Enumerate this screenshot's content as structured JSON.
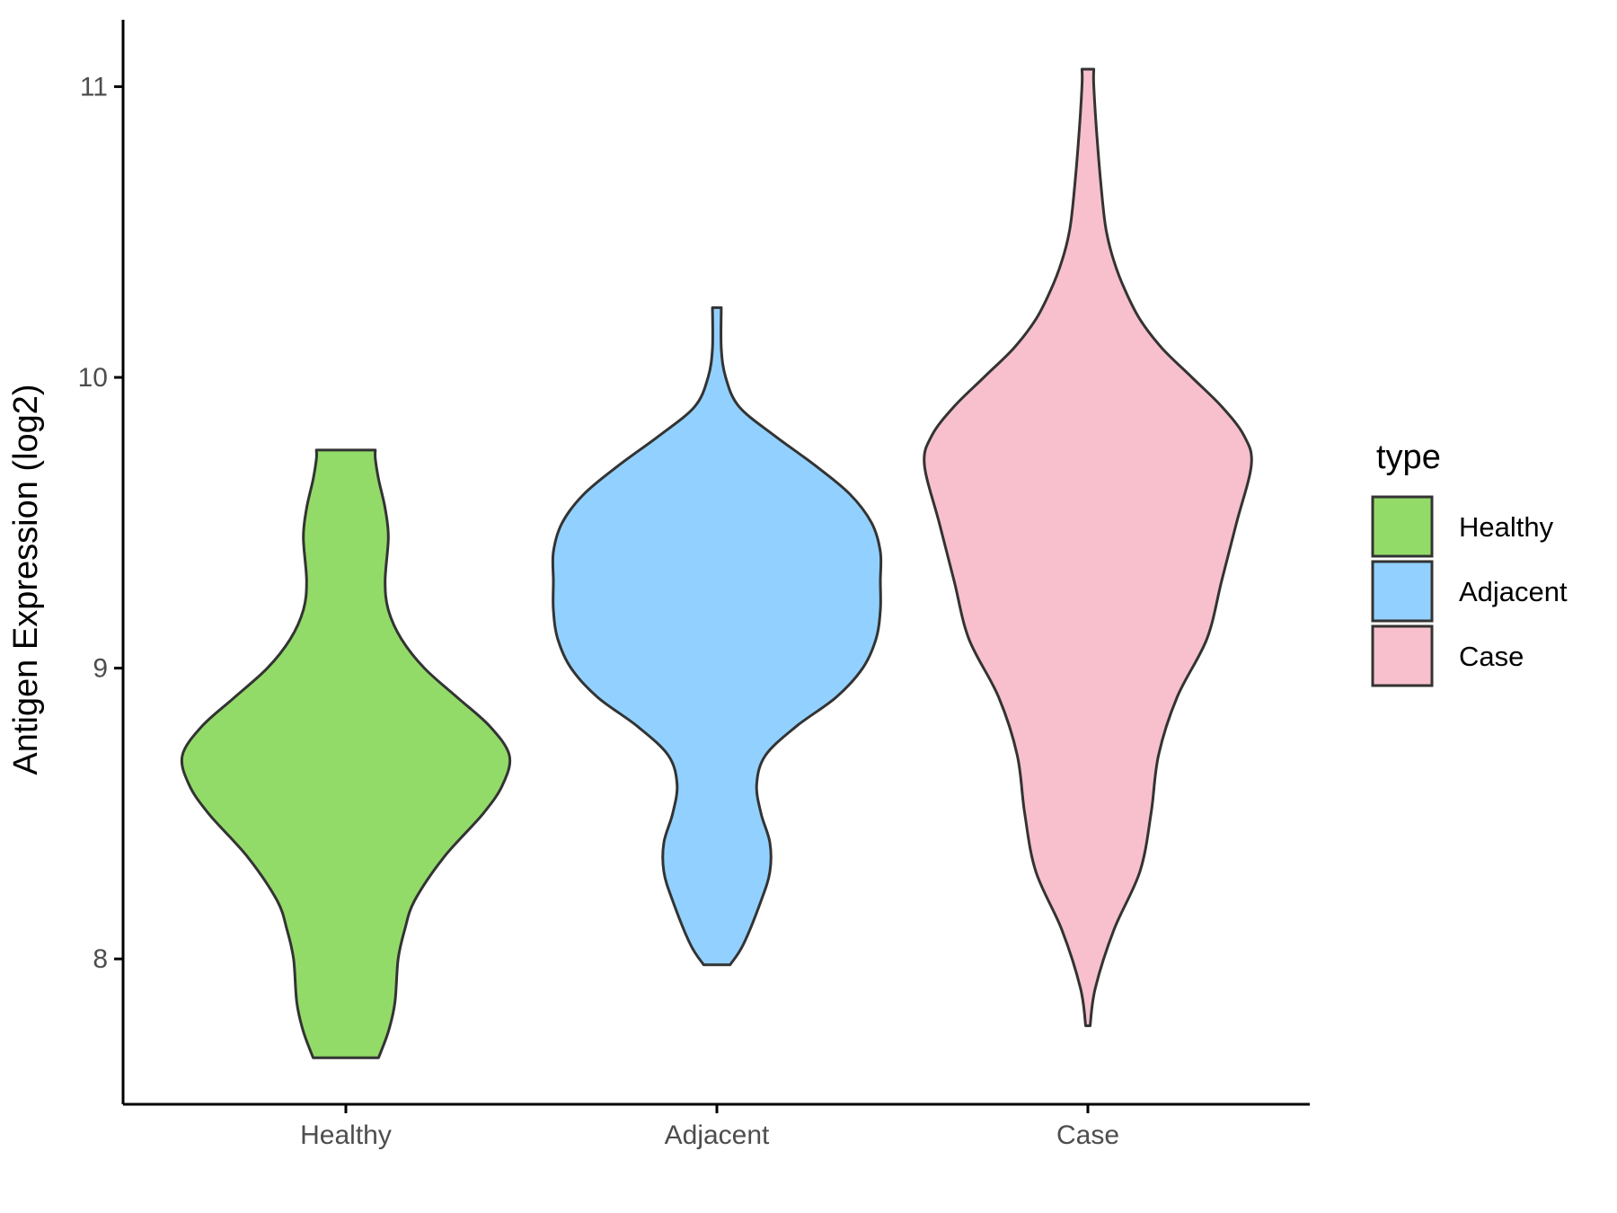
{
  "chart_data": {
    "type": "violin",
    "title": "",
    "xlabel": "",
    "ylabel": "Antigen Expression (log2)",
    "ylim": [
      7.5,
      11.23
    ],
    "yticks": [
      8,
      9,
      10,
      11
    ],
    "categories": [
      "Healthy",
      "Adjacent",
      "Case"
    ],
    "grid": false,
    "legend": {
      "title": "type",
      "position": "right",
      "entries": [
        "Healthy",
        "Adjacent",
        "Case"
      ]
    },
    "series": [
      {
        "name": "Healthy",
        "color": "#93DB69",
        "min": 7.66,
        "max": 9.75,
        "density_profile": [
          [
            7.66,
            0.1
          ],
          [
            7.75,
            0.13
          ],
          [
            7.85,
            0.15
          ],
          [
            8.0,
            0.16
          ],
          [
            8.1,
            0.18
          ],
          [
            8.2,
            0.21
          ],
          [
            8.35,
            0.3
          ],
          [
            8.5,
            0.42
          ],
          [
            8.6,
            0.48
          ],
          [
            8.7,
            0.5
          ],
          [
            8.8,
            0.44
          ],
          [
            8.9,
            0.34
          ],
          [
            9.0,
            0.24
          ],
          [
            9.1,
            0.17
          ],
          [
            9.2,
            0.13
          ],
          [
            9.3,
            0.12
          ],
          [
            9.45,
            0.13
          ],
          [
            9.55,
            0.12
          ],
          [
            9.65,
            0.1
          ],
          [
            9.72,
            0.09
          ],
          [
            9.75,
            0.09
          ]
        ]
      },
      {
        "name": "Adjacent",
        "color": "#92D1FF",
        "min": 7.98,
        "max": 10.24,
        "density_profile": [
          [
            7.98,
            0.03
          ],
          [
            8.05,
            0.06
          ],
          [
            8.2,
            0.1
          ],
          [
            8.3,
            0.12
          ],
          [
            8.4,
            0.12
          ],
          [
            8.5,
            0.1
          ],
          [
            8.6,
            0.09
          ],
          [
            8.7,
            0.11
          ],
          [
            8.8,
            0.18
          ],
          [
            8.9,
            0.27
          ],
          [
            9.0,
            0.33
          ],
          [
            9.1,
            0.36
          ],
          [
            9.2,
            0.37
          ],
          [
            9.3,
            0.37
          ],
          [
            9.4,
            0.37
          ],
          [
            9.5,
            0.35
          ],
          [
            9.6,
            0.3
          ],
          [
            9.7,
            0.22
          ],
          [
            9.8,
            0.13
          ],
          [
            9.9,
            0.05
          ],
          [
            10.0,
            0.02
          ],
          [
            10.1,
            0.01
          ],
          [
            10.24,
            0.01
          ]
        ]
      },
      {
        "name": "Case",
        "color": "#F7C0CC",
        "min": 7.77,
        "max": 11.06,
        "density_profile": [
          [
            7.77,
            0.003
          ],
          [
            7.9,
            0.01
          ],
          [
            8.1,
            0.035
          ],
          [
            8.3,
            0.07
          ],
          [
            8.5,
            0.085
          ],
          [
            8.7,
            0.095
          ],
          [
            8.9,
            0.12
          ],
          [
            9.1,
            0.16
          ],
          [
            9.3,
            0.18
          ],
          [
            9.5,
            0.2
          ],
          [
            9.7,
            0.22
          ],
          [
            9.8,
            0.21
          ],
          [
            9.9,
            0.18
          ],
          [
            10.0,
            0.14
          ],
          [
            10.1,
            0.1
          ],
          [
            10.2,
            0.07
          ],
          [
            10.3,
            0.05
          ],
          [
            10.4,
            0.035
          ],
          [
            10.5,
            0.025
          ],
          [
            10.6,
            0.02
          ],
          [
            10.8,
            0.013
          ],
          [
            11.0,
            0.008
          ],
          [
            11.06,
            0.008
          ]
        ]
      }
    ]
  }
}
